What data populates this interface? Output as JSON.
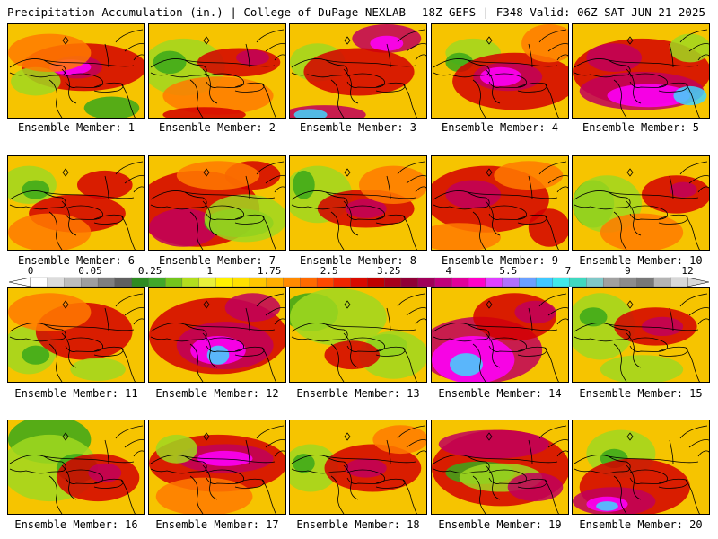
{
  "header": {
    "left": "Precipitation Accumulation (in.) | College of DuPage NEXLAB",
    "right": "18Z GEFS | F348 Valid: 06Z SAT JUN 21 2025"
  },
  "panels": [
    {
      "caption": "Ensemble Member: 1",
      "blobs": [
        [
          "#d40000",
          0.55,
          0.45,
          0.45,
          0.25
        ],
        [
          "#c0005a",
          0.5,
          0.45,
          0.18,
          0.12
        ],
        [
          "#ff00ff",
          0.45,
          0.45,
          0.15,
          0.08
        ],
        [
          "#39a81a",
          0.75,
          0.88,
          0.2,
          0.12
        ],
        [
          "#a0d820",
          0.2,
          0.6,
          0.18,
          0.15
        ],
        [
          "#ff7a00",
          0.3,
          0.3,
          0.3,
          0.2
        ]
      ]
    },
    {
      "caption": "Ensemble Member: 2",
      "blobs": [
        [
          "#a0d820",
          0.25,
          0.45,
          0.3,
          0.3
        ],
        [
          "#39a81a",
          0.15,
          0.4,
          0.12,
          0.12
        ],
        [
          "#d40000",
          0.65,
          0.4,
          0.3,
          0.15
        ],
        [
          "#c0005a",
          0.75,
          0.35,
          0.12,
          0.08
        ],
        [
          "#ff7a00",
          0.5,
          0.75,
          0.4,
          0.2
        ],
        [
          "#d40000",
          0.4,
          0.95,
          0.3,
          0.08
        ]
      ]
    },
    {
      "caption": "Ensemble Member: 3",
      "blobs": [
        [
          "#c0005a",
          0.7,
          0.15,
          0.25,
          0.15
        ],
        [
          "#ff00ff",
          0.7,
          0.2,
          0.12,
          0.08
        ],
        [
          "#a0d820",
          0.2,
          0.4,
          0.2,
          0.2
        ],
        [
          "#d40000",
          0.5,
          0.5,
          0.4,
          0.25
        ],
        [
          "#c0005a",
          0.25,
          0.95,
          0.3,
          0.1
        ],
        [
          "#3ed6ff",
          0.15,
          0.95,
          0.12,
          0.06
        ]
      ]
    },
    {
      "caption": "Ensemble Member: 4",
      "blobs": [
        [
          "#a0d820",
          0.3,
          0.3,
          0.2,
          0.15
        ],
        [
          "#39a81a",
          0.2,
          0.4,
          0.1,
          0.1
        ],
        [
          "#d40000",
          0.6,
          0.6,
          0.45,
          0.3
        ],
        [
          "#c0005a",
          0.55,
          0.55,
          0.25,
          0.15
        ],
        [
          "#ff00ff",
          0.5,
          0.55,
          0.15,
          0.1
        ],
        [
          "#ff7a00",
          0.85,
          0.2,
          0.2,
          0.2
        ]
      ]
    },
    {
      "caption": "Ensemble Member: 5",
      "blobs": [
        [
          "#d40000",
          0.5,
          0.5,
          0.5,
          0.35
        ],
        [
          "#c0005a",
          0.5,
          0.7,
          0.45,
          0.2
        ],
        [
          "#ff00ff",
          0.55,
          0.75,
          0.3,
          0.12
        ],
        [
          "#3ed6ff",
          0.85,
          0.75,
          0.12,
          0.1
        ],
        [
          "#a0d820",
          0.85,
          0.25,
          0.15,
          0.15
        ],
        [
          "#c0005a",
          0.3,
          0.35,
          0.2,
          0.15
        ]
      ]
    },
    {
      "caption": "Ensemble Member: 6",
      "blobs": [
        [
          "#a0d820",
          0.15,
          0.3,
          0.2,
          0.2
        ],
        [
          "#39a81a",
          0.2,
          0.35,
          0.1,
          0.1
        ],
        [
          "#d40000",
          0.5,
          0.6,
          0.35,
          0.2
        ],
        [
          "#d40000",
          0.7,
          0.3,
          0.2,
          0.15
        ],
        [
          "#ff7a00",
          0.3,
          0.8,
          0.3,
          0.2
        ]
      ]
    },
    {
      "caption": "Ensemble Member: 7",
      "blobs": [
        [
          "#d40000",
          0.35,
          0.55,
          0.45,
          0.4
        ],
        [
          "#c0005a",
          0.25,
          0.75,
          0.25,
          0.2
        ],
        [
          "#39a81a",
          0.65,
          0.7,
          0.25,
          0.15
        ],
        [
          "#a0d820",
          0.7,
          0.65,
          0.3,
          0.25
        ],
        [
          "#d40000",
          0.75,
          0.2,
          0.2,
          0.15
        ],
        [
          "#ff7a00",
          0.5,
          0.2,
          0.3,
          0.15
        ]
      ]
    },
    {
      "caption": "Ensemble Member: 8",
      "blobs": [
        [
          "#a0d820",
          0.2,
          0.4,
          0.25,
          0.3
        ],
        [
          "#39a81a",
          0.1,
          0.3,
          0.08,
          0.15
        ],
        [
          "#d40000",
          0.55,
          0.55,
          0.35,
          0.2
        ],
        [
          "#c0005a",
          0.55,
          0.55,
          0.15,
          0.1
        ],
        [
          "#ff7a00",
          0.75,
          0.3,
          0.25,
          0.2
        ]
      ]
    },
    {
      "caption": "Ensemble Member: 9",
      "blobs": [
        [
          "#d40000",
          0.4,
          0.45,
          0.45,
          0.35
        ],
        [
          "#c0005a",
          0.3,
          0.4,
          0.2,
          0.15
        ],
        [
          "#ff7a00",
          0.7,
          0.2,
          0.25,
          0.15
        ],
        [
          "#d40000",
          0.85,
          0.75,
          0.15,
          0.2
        ],
        [
          "#ff7a00",
          0.2,
          0.85,
          0.3,
          0.15
        ]
      ]
    },
    {
      "caption": "Ensemble Member: 10",
      "blobs": [
        [
          "#39a81a",
          0.15,
          0.5,
          0.15,
          0.25
        ],
        [
          "#a0d820",
          0.25,
          0.5,
          0.25,
          0.3
        ],
        [
          "#d40000",
          0.75,
          0.4,
          0.25,
          0.2
        ],
        [
          "#c0005a",
          0.8,
          0.35,
          0.1,
          0.08
        ],
        [
          "#ff7a00",
          0.5,
          0.8,
          0.3,
          0.2
        ]
      ]
    },
    {
      "caption": "Ensemble Member: 11",
      "blobs": [
        [
          "#a0d820",
          0.15,
          0.65,
          0.2,
          0.25
        ],
        [
          "#39a81a",
          0.2,
          0.7,
          0.1,
          0.1
        ],
        [
          "#d40000",
          0.55,
          0.45,
          0.35,
          0.3
        ],
        [
          "#ff7a00",
          0.3,
          0.25,
          0.3,
          0.2
        ],
        [
          "#a0d820",
          0.65,
          0.85,
          0.2,
          0.12
        ]
      ]
    },
    {
      "caption": "Ensemble Member: 12",
      "blobs": [
        [
          "#d40000",
          0.5,
          0.5,
          0.5,
          0.4
        ],
        [
          "#c0005a",
          0.55,
          0.6,
          0.35,
          0.25
        ],
        [
          "#ff00ff",
          0.5,
          0.65,
          0.2,
          0.15
        ],
        [
          "#3ed6ff",
          0.5,
          0.7,
          0.08,
          0.1
        ],
        [
          "#c0005a",
          0.75,
          0.2,
          0.2,
          0.15
        ]
      ]
    },
    {
      "caption": "Ensemble Member: 13",
      "blobs": [
        [
          "#39a81a",
          0.15,
          0.25,
          0.2,
          0.2
        ],
        [
          "#a0d820",
          0.35,
          0.3,
          0.35,
          0.3
        ],
        [
          "#39a81a",
          0.7,
          0.6,
          0.15,
          0.12
        ],
        [
          "#a0d820",
          0.75,
          0.7,
          0.25,
          0.25
        ],
        [
          "#d40000",
          0.45,
          0.7,
          0.2,
          0.15
        ]
      ]
    },
    {
      "caption": "Ensemble Member: 14",
      "blobs": [
        [
          "#c0005a",
          0.35,
          0.65,
          0.45,
          0.35
        ],
        [
          "#ff00ff",
          0.3,
          0.75,
          0.3,
          0.25
        ],
        [
          "#3ed6ff",
          0.25,
          0.8,
          0.12,
          0.12
        ],
        [
          "#d40000",
          0.6,
          0.3,
          0.3,
          0.25
        ],
        [
          "#c0005a",
          0.75,
          0.25,
          0.15,
          0.12
        ]
      ]
    },
    {
      "caption": "Ensemble Member: 15",
      "blobs": [
        [
          "#a0d820",
          0.2,
          0.4,
          0.25,
          0.35
        ],
        [
          "#39a81a",
          0.15,
          0.3,
          0.1,
          0.1
        ],
        [
          "#d40000",
          0.6,
          0.4,
          0.3,
          0.2
        ],
        [
          "#c0005a",
          0.65,
          0.4,
          0.15,
          0.1
        ],
        [
          "#a0d820",
          0.5,
          0.85,
          0.3,
          0.15
        ]
      ]
    },
    {
      "caption": "Ensemble Member: 16",
      "blobs": [
        [
          "#39a81a",
          0.3,
          0.2,
          0.3,
          0.25
        ],
        [
          "#a0d820",
          0.3,
          0.5,
          0.35,
          0.35
        ],
        [
          "#39a81a",
          0.5,
          0.5,
          0.15,
          0.15
        ],
        [
          "#d40000",
          0.65,
          0.6,
          0.3,
          0.25
        ],
        [
          "#c0005a",
          0.7,
          0.55,
          0.12,
          0.1
        ]
      ]
    },
    {
      "caption": "Ensemble Member: 17",
      "blobs": [
        [
          "#d40000",
          0.5,
          0.45,
          0.5,
          0.3
        ],
        [
          "#c0005a",
          0.55,
          0.4,
          0.35,
          0.15
        ],
        [
          "#ff00ff",
          0.55,
          0.4,
          0.2,
          0.08
        ],
        [
          "#a0d820",
          0.2,
          0.3,
          0.15,
          0.15
        ],
        [
          "#ff7a00",
          0.4,
          0.8,
          0.35,
          0.2
        ]
      ]
    },
    {
      "caption": "Ensemble Member: 18",
      "blobs": [
        [
          "#a0d820",
          0.15,
          0.5,
          0.2,
          0.25
        ],
        [
          "#39a81a",
          0.1,
          0.45,
          0.08,
          0.1
        ],
        [
          "#d40000",
          0.6,
          0.5,
          0.35,
          0.25
        ],
        [
          "#c0005a",
          0.55,
          0.5,
          0.15,
          0.1
        ],
        [
          "#ff7a00",
          0.8,
          0.2,
          0.2,
          0.15
        ]
      ]
    },
    {
      "caption": "Ensemble Member: 19",
      "blobs": [
        [
          "#d40000",
          0.5,
          0.5,
          0.5,
          0.4
        ],
        [
          "#c0005a",
          0.45,
          0.25,
          0.4,
          0.15
        ],
        [
          "#39a81a",
          0.35,
          0.55,
          0.25,
          0.12
        ],
        [
          "#a0d820",
          0.5,
          0.6,
          0.3,
          0.15
        ],
        [
          "#c0005a",
          0.75,
          0.7,
          0.2,
          0.15
        ]
      ]
    },
    {
      "caption": "Ensemble Member: 20",
      "blobs": [
        [
          "#a0d820",
          0.35,
          0.35,
          0.25,
          0.25
        ],
        [
          "#39a81a",
          0.3,
          0.4,
          0.1,
          0.1
        ],
        [
          "#d40000",
          0.45,
          0.7,
          0.4,
          0.3
        ],
        [
          "#c0005a",
          0.3,
          0.85,
          0.3,
          0.15
        ],
        [
          "#ff00ff",
          0.25,
          0.88,
          0.15,
          0.08
        ],
        [
          "#3ed6ff",
          0.25,
          0.9,
          0.08,
          0.05
        ]
      ]
    }
  ],
  "colorbar": {
    "labels": [
      "0",
      "0.05",
      "0.25",
      "1",
      "1.75",
      "2.5",
      "3.25",
      "4",
      "5.5",
      "7",
      "9",
      "12"
    ],
    "colors": [
      "#ffffff",
      "#dcdcdc",
      "#bdbdbd",
      "#9e9e9e",
      "#7f7f7f",
      "#606060",
      "#2e8b22",
      "#41a82a",
      "#74c51d",
      "#b2dd1e",
      "#e8f03a",
      "#fff200",
      "#ffe000",
      "#ffc600",
      "#ffad00",
      "#ff8a00",
      "#ff6a00",
      "#ff4800",
      "#f02600",
      "#d80b00",
      "#c00000",
      "#a8001c",
      "#900036",
      "#a0005a",
      "#c0007a",
      "#e0009a",
      "#ff00c8",
      "#e040ff",
      "#b070ff",
      "#6aa0ff",
      "#40c8ff",
      "#40e8e8",
      "#40d8c0",
      "#80c8c8",
      "#a0a0a0",
      "#8c8c8c",
      "#787878",
      "#b4b4b4",
      "#d8d8d8"
    ]
  }
}
